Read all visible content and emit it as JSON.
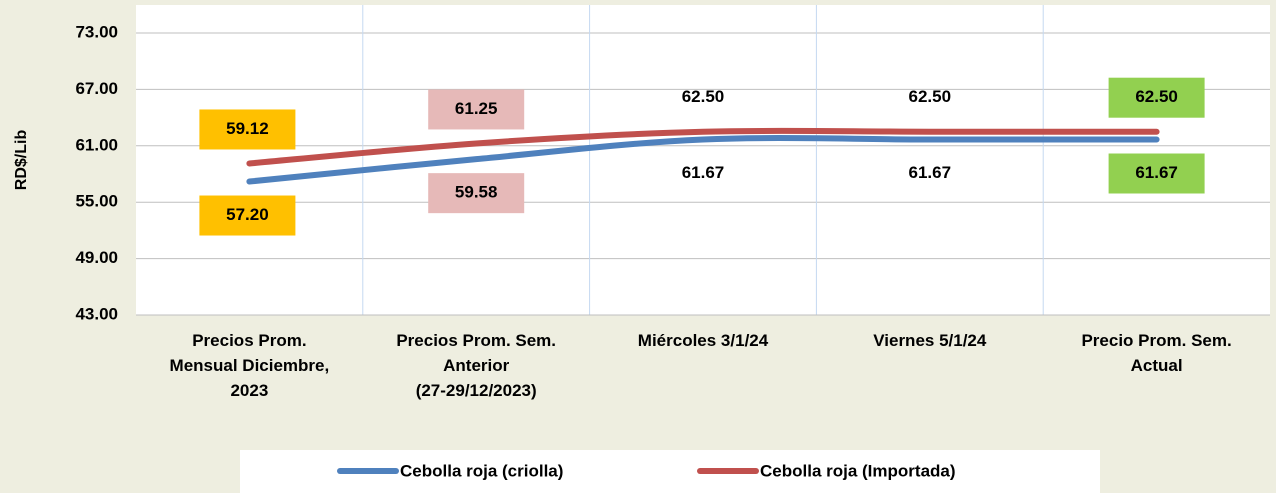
{
  "chart_data": {
    "type": "line",
    "y_label": "RD$/Lib",
    "categories": [
      "Precios Prom.\nMensual Diciembre,\n2023",
      "Precios Prom. Sem.\nAnterior\n(27-29/12/2023)",
      "Miércoles 3/1/24",
      "Viernes 5/1/24",
      "Precio Prom. Sem.\nActual"
    ],
    "series": [
      {
        "name": "Cebolla roja (criolla)",
        "color": "#4f81bd",
        "values": [
          57.2,
          59.58,
          61.67,
          61.67,
          61.67
        ],
        "value_labels": [
          "57.20",
          "59.58",
          "61.67",
          "61.67",
          "61.67"
        ],
        "label_backgrounds": [
          "#ffc000",
          "#e6b9b8",
          null,
          null,
          "#92d050"
        ]
      },
      {
        "name": "Cebolla roja (Importada)",
        "color": "#c0504d",
        "values": [
          59.12,
          61.25,
          62.5,
          62.5,
          62.5
        ],
        "value_labels": [
          "59.12",
          "61.25",
          "62.50",
          "62.50",
          "62.50"
        ],
        "label_backgrounds": [
          "#ffc000",
          "#e6b9b8",
          null,
          null,
          "#92d050"
        ]
      }
    ],
    "ylim": [
      43,
      73
    ],
    "yticks": [
      {
        "value": 43,
        "label": "43.00"
      },
      {
        "value": 49,
        "label": "49.00"
      },
      {
        "value": 55,
        "label": "55.00"
      },
      {
        "value": 61,
        "label": "61.00"
      },
      {
        "value": 67,
        "label": "67.00"
      },
      {
        "value": 73,
        "label": "73.00"
      }
    ],
    "grid": true,
    "legend": "bottom"
  }
}
